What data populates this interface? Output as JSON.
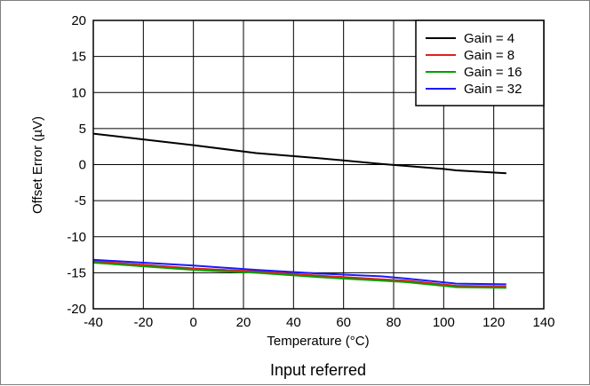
{
  "caption": "Input referred",
  "chart_data": {
    "type": "line",
    "xlabel": "Temperature (°C)",
    "ylabel": "Offset Error (µV)",
    "xlim": [
      -40,
      140
    ],
    "ylim": [
      -20,
      20
    ],
    "xticks": [
      -40,
      -20,
      0,
      20,
      40,
      60,
      80,
      100,
      120,
      140
    ],
    "yticks": [
      20,
      15,
      10,
      5,
      0,
      -5,
      -10,
      -15,
      -20
    ],
    "grid": true,
    "legend": "top-right",
    "series": [
      {
        "name": "Gain = 4",
        "color": "#000000",
        "x": [
          -40,
          -20,
          0,
          25,
          50,
          75,
          100,
          105,
          125
        ],
        "y": [
          4.3,
          3.5,
          2.7,
          1.6,
          0.9,
          0.1,
          -0.6,
          -0.8,
          -1.2
        ]
      },
      {
        "name": "Gain = 8",
        "color": "#e0201b",
        "x": [
          -40,
          -20,
          0,
          25,
          50,
          75,
          85,
          105,
          125
        ],
        "y": [
          -13.4,
          -13.9,
          -14.4,
          -14.8,
          -15.4,
          -15.9,
          -16.1,
          -16.8,
          -16.9
        ]
      },
      {
        "name": "Gain = 16",
        "color": "#00a000",
        "x": [
          -40,
          -20,
          0,
          25,
          50,
          75,
          85,
          105,
          125
        ],
        "y": [
          -13.6,
          -14.1,
          -14.6,
          -15.0,
          -15.6,
          -16.1,
          -16.3,
          -17.0,
          -17.1
        ]
      },
      {
        "name": "Gain = 32",
        "color": "#1a1aff",
        "x": [
          -40,
          -20,
          0,
          25,
          50,
          75,
          85,
          105,
          125
        ],
        "y": [
          -13.2,
          -13.6,
          -14.0,
          -14.6,
          -15.1,
          -15.5,
          -15.8,
          -16.5,
          -16.6
        ]
      }
    ]
  }
}
